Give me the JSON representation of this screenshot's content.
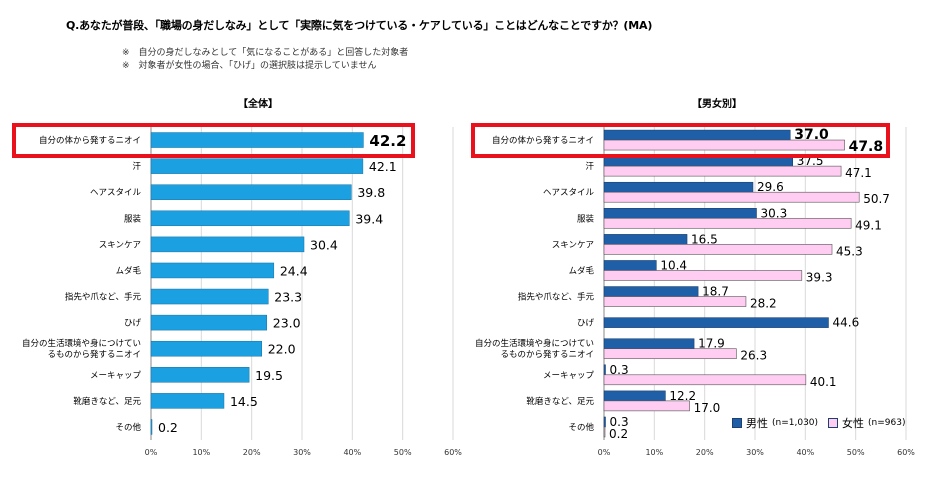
{
  "title": "Q.あなたが普段、「職場の身だしなみ」として「実際に気をつけている・ケアしている」ことはどんなことですか？(MA)",
  "notes": [
    "※　自分の身だしなみとして「気になることがある」と回答した対象者",
    "※　対象者が女性の場合、「ひげ」の選択肢は提示していません"
  ],
  "colors": {
    "overall": "#1ba1e2",
    "male": "#1f5fa8",
    "female": "#ffccf2",
    "highlight": "#e8111c"
  },
  "chart_data": [
    {
      "type": "bar",
      "orientation": "horizontal",
      "title": "【全体】",
      "categories": [
        "自分の体から発するニオイ",
        "汗",
        "ヘアスタイル",
        "服装",
        "スキンケア",
        "ムダ毛",
        "指先や爪など、手元",
        "ひげ",
        "自分の生活環境や身につけているものから発するニオイ",
        "メーキャップ",
        "靴磨きなど、足元",
        "その他"
      ],
      "series": [
        {
          "values": [
            42.2,
            42.1,
            39.8,
            39.4,
            30.4,
            24.4,
            23.3,
            23.0,
            22.0,
            19.5,
            14.5,
            0.2
          ]
        }
      ],
      "value_labels": [
        "42.2",
        "42.1",
        "39.8",
        "39.4",
        "30.4",
        "24.4",
        "23.3",
        "23.0",
        "22.0",
        "19.5",
        "14.5",
        "0.2"
      ],
      "xlim": [
        0,
        60
      ],
      "xticks": [
        "0%",
        "10%",
        "20%",
        "30%",
        "40%",
        "50%",
        "60%"
      ],
      "highlighted_category": "自分の体から発するニオイ",
      "grid": true
    },
    {
      "type": "bar",
      "orientation": "horizontal",
      "title": "【男女別】",
      "categories": [
        "自分の体から発するニオイ",
        "汗",
        "ヘアスタイル",
        "服装",
        "スキンケア",
        "ムダ毛",
        "指先や爪など、手元",
        "ひげ",
        "自分の生活環境や身につけているものから発するニオイ",
        "メーキャップ",
        "靴磨きなど、足元",
        "その他"
      ],
      "series": [
        {
          "name": "男性",
          "n_label": "(n=1,030)",
          "values": [
            37.0,
            37.5,
            29.6,
            30.3,
            16.5,
            10.4,
            18.7,
            44.6,
            17.9,
            0.3,
            12.2,
            0.3
          ],
          "labels": [
            "37.0",
            "37.5",
            "29.6",
            "30.3",
            "16.5",
            "10.4",
            "18.7",
            "44.6",
            "17.9",
            "0.3",
            "12.2",
            "0.3"
          ]
        },
        {
          "name": "女性",
          "n_label": "(n=963)",
          "values": [
            47.8,
            47.1,
            50.7,
            49.1,
            45.3,
            39.3,
            28.2,
            null,
            26.3,
            40.1,
            17.0,
            0.2
          ],
          "labels": [
            "47.8",
            "47.1",
            "50.7",
            "49.1",
            "45.3",
            "39.3",
            "28.2",
            "",
            "26.3",
            "40.1",
            "17.0",
            "0.2"
          ]
        }
      ],
      "xlim": [
        0,
        60
      ],
      "xticks": [
        "0%",
        "10%",
        "20%",
        "30%",
        "40%",
        "50%",
        "60%"
      ],
      "highlighted_category": "自分の体から発するニオイ",
      "legend": "bottom-right",
      "grid": true
    }
  ]
}
